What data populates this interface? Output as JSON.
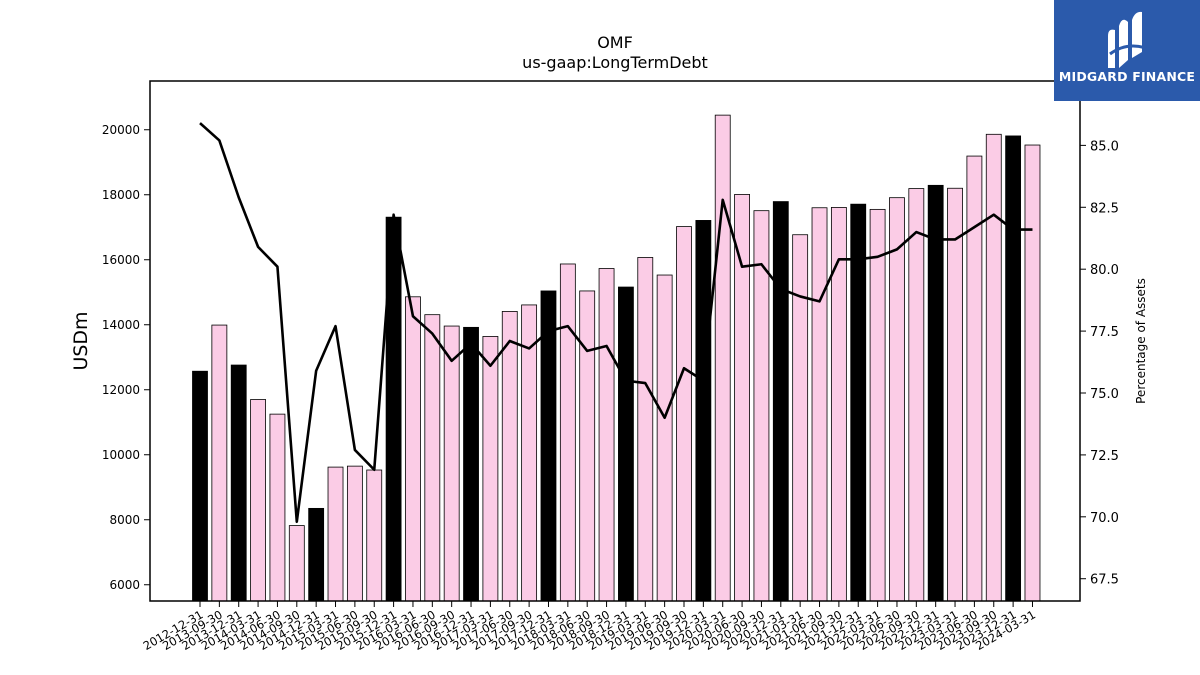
{
  "logo": {
    "text": "MIDGARD FINANCE",
    "icon": "midgard-logo-icon",
    "background": "#2b5aab"
  },
  "chart_data": {
    "type": "bar",
    "title": "OMF",
    "subtitle": "us-gaap:LongTermDebt",
    "ylabel": "USDm",
    "y2label": "Percentage of Assets",
    "ylim": [
      5500,
      21500
    ],
    "y2lim": [
      66.6,
      87.6
    ],
    "yticks": [
      6000,
      8000,
      10000,
      12000,
      14000,
      16000,
      18000,
      20000
    ],
    "y2ticks": [
      67.5,
      70.0,
      72.5,
      75.0,
      77.5,
      80.0,
      82.5,
      85.0
    ],
    "categories": [
      "2012-12-31",
      "2013-09-30",
      "2013-12-31",
      "2014-03-31",
      "2014-06-30",
      "2014-09-30",
      "2014-12-31",
      "2015-03-31",
      "2015-06-30",
      "2015-09-30",
      "2015-12-31",
      "2016-03-31",
      "2016-06-30",
      "2016-09-30",
      "2016-12-31",
      "2017-03-31",
      "2017-06-30",
      "2017-09-30",
      "2017-12-31",
      "2018-03-31",
      "2018-06-30",
      "2018-09-30",
      "2018-12-31",
      "2019-03-31",
      "2019-06-30",
      "2019-09-30",
      "2019-12-31",
      "2020-03-31",
      "2020-06-30",
      "2020-09-30",
      "2020-12-31",
      "2021-03-31",
      "2021-06-30",
      "2021-09-30",
      "2021-12-31",
      "2022-03-31",
      "2022-06-30",
      "2022-09-30",
      "2022-12-31",
      "2023-03-31",
      "2023-06-30",
      "2023-09-30",
      "2023-12-31",
      "2024-03-31"
    ],
    "series": [
      {
        "type": "bar",
        "values": [
          12570,
          13990,
          12760,
          11700,
          11250,
          7820,
          8350,
          9620,
          9650,
          9530,
          17310,
          14860,
          14310,
          13960,
          13920,
          13640,
          14410,
          14610,
          15040,
          15870,
          15040,
          15730,
          15160,
          16070,
          15530,
          17020,
          17210,
          20450,
          18010,
          17510,
          17790,
          16770,
          17600,
          17610,
          17710,
          17550,
          17910,
          18190,
          18290,
          18200,
          19190,
          19860,
          19810,
          19530
        ],
        "year_end_color": "#000000",
        "quarter_color": "#fbcce6"
      },
      {
        "type": "line",
        "axis": "secondary",
        "color": "#000000",
        "values": [
          85.9,
          85.2,
          82.9,
          80.9,
          80.1,
          69.8,
          75.9,
          77.7,
          72.7,
          71.9,
          82.2,
          78.1,
          77.4,
          76.3,
          77.0,
          76.1,
          77.1,
          76.8,
          77.5,
          77.7,
          76.7,
          76.9,
          75.5,
          75.4,
          74.0,
          76.0,
          75.5,
          82.8,
          80.1,
          80.2,
          79.2,
          78.9,
          78.7,
          80.4,
          80.4,
          80.5,
          80.8,
          81.5,
          81.2,
          81.2,
          81.7,
          82.2,
          81.6,
          81.6
        ]
      }
    ]
  }
}
